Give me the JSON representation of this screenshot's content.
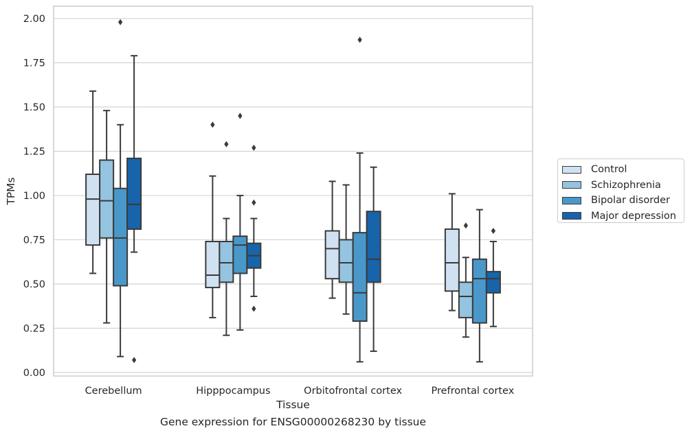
{
  "chart_data": {
    "type": "box",
    "categories": [
      "Cerebellum",
      "Hipppocampus",
      "Orbitofrontal cortex",
      "Prefrontal cortex"
    ],
    "xlabel": "Tissue",
    "ylabel": "TPMs",
    "ylim": [
      -0.02,
      2.07
    ],
    "yticks": [
      "0.00",
      "0.25",
      "0.50",
      "0.75",
      "1.00",
      "1.25",
      "1.50",
      "1.75",
      "2.00"
    ],
    "grid": true,
    "legend_position": "right",
    "series": [
      {
        "name": "Control",
        "color": "#d0e1f2",
        "boxes": [
          {
            "whislo": 0.56,
            "q1": 0.72,
            "med": 0.98,
            "q3": 1.12,
            "whishi": 1.59,
            "fliers": []
          },
          {
            "whislo": 0.31,
            "q1": 0.48,
            "med": 0.55,
            "q3": 0.74,
            "whishi": 1.11,
            "fliers": [
              1.4
            ]
          },
          {
            "whislo": 0.42,
            "q1": 0.53,
            "med": 0.7,
            "q3": 0.8,
            "whishi": 1.08,
            "fliers": []
          },
          {
            "whislo": 0.35,
            "q1": 0.46,
            "med": 0.62,
            "q3": 0.81,
            "whishi": 1.01,
            "fliers": []
          }
        ]
      },
      {
        "name": "Schizophrenia",
        "color": "#94c4df",
        "boxes": [
          {
            "whislo": 0.28,
            "q1": 0.76,
            "med": 0.97,
            "q3": 1.2,
            "whishi": 1.48,
            "fliers": []
          },
          {
            "whislo": 0.21,
            "q1": 0.51,
            "med": 0.62,
            "q3": 0.74,
            "whishi": 0.87,
            "fliers": [
              1.29
            ]
          },
          {
            "whislo": 0.33,
            "q1": 0.51,
            "med": 0.62,
            "q3": 0.75,
            "whishi": 1.06,
            "fliers": []
          },
          {
            "whislo": 0.2,
            "q1": 0.31,
            "med": 0.43,
            "q3": 0.51,
            "whishi": 0.65,
            "fliers": [
              0.83
            ]
          }
        ]
      },
      {
        "name": "Bipolar disorder",
        "color": "#4a98c9",
        "boxes": [
          {
            "whislo": 0.09,
            "q1": 0.49,
            "med": 0.76,
            "q3": 1.04,
            "whishi": 1.4,
            "fliers": [
              1.98
            ]
          },
          {
            "whislo": 0.24,
            "q1": 0.56,
            "med": 0.72,
            "q3": 0.77,
            "whishi": 1.0,
            "fliers": [
              1.45
            ]
          },
          {
            "whislo": 0.06,
            "q1": 0.29,
            "med": 0.45,
            "q3": 0.79,
            "whishi": 1.24,
            "fliers": [
              1.88
            ]
          },
          {
            "whislo": 0.06,
            "q1": 0.28,
            "med": 0.53,
            "q3": 0.64,
            "whishi": 0.92,
            "fliers": []
          }
        ]
      },
      {
        "name": "Major depression",
        "color": "#1764ab",
        "boxes": [
          {
            "whislo": 0.68,
            "q1": 0.81,
            "med": 0.95,
            "q3": 1.21,
            "whishi": 1.79,
            "fliers": [
              0.07
            ]
          },
          {
            "whislo": 0.43,
            "q1": 0.59,
            "med": 0.66,
            "q3": 0.73,
            "whishi": 0.87,
            "fliers": [
              1.27,
              0.96,
              0.36
            ]
          },
          {
            "whislo": 0.12,
            "q1": 0.51,
            "med": 0.64,
            "q3": 0.91,
            "whishi": 1.16,
            "fliers": []
          },
          {
            "whislo": 0.26,
            "q1": 0.45,
            "med": 0.53,
            "q3": 0.57,
            "whishi": 0.74,
            "fliers": [
              0.8
            ]
          }
        ]
      }
    ]
  },
  "caption": "Gene expression for ENSG00000268230 by tissue"
}
